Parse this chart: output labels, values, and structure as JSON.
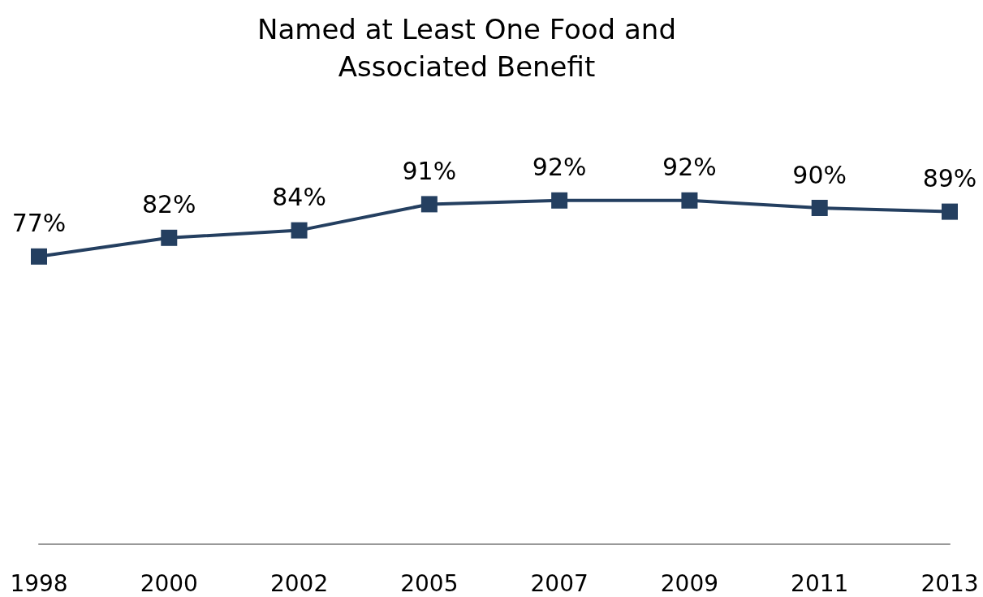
{
  "chart_data": {
    "type": "line",
    "title": "Named at Least One Food and\nAssociated Benefit",
    "categories": [
      "1998",
      "2000",
      "2002",
      "2005",
      "2007",
      "2009",
      "2011",
      "2013"
    ],
    "series": [
      {
        "color": "#243f60",
        "values": [
          77,
          82,
          84,
          91,
          92,
          92,
          90,
          89
        ],
        "value_labels": [
          "77%",
          "82%",
          "84%",
          "91%",
          "92%",
          "92%",
          "90%",
          "89%"
        ]
      }
    ],
    "tick_labels": "x",
    "marker": "square",
    "line_style": "solid"
  }
}
